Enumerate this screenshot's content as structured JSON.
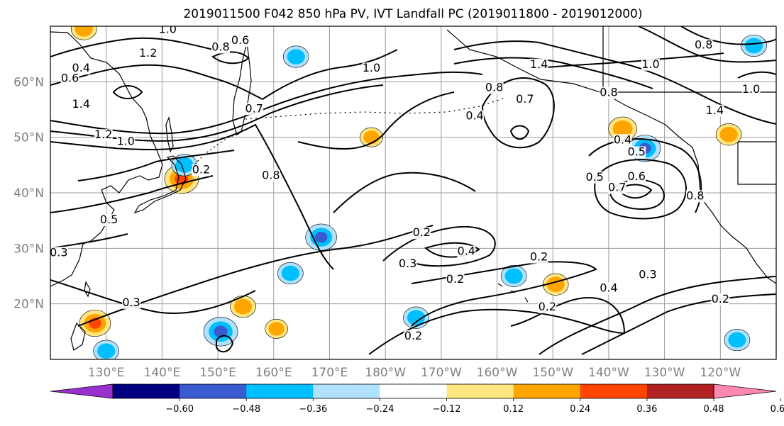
{
  "chart_data": {
    "type": "heatmap",
    "title": "2019011500 F042 850 hPa PV, IVT Landfall PC (2019011800 - 2019012000)",
    "map": {
      "projection": "PlateCarree",
      "lon_range": [
        120,
        250
      ],
      "lat_range": [
        10,
        70
      ],
      "lat_ticks": [
        20,
        30,
        40,
        50,
        60
      ],
      "lat_tick_labels": [
        "20°N",
        "30°N",
        "40°N",
        "50°N",
        "60°N"
      ],
      "lon_ticks": [
        130,
        140,
        150,
        160,
        170,
        180,
        190,
        200,
        210,
        220,
        230,
        240
      ],
      "lon_tick_labels": [
        "130°E",
        "140°E",
        "150°E",
        "160°E",
        "170°E",
        "180°W",
        "170°W",
        "160°W",
        "150°W",
        "140°W",
        "130°W",
        "120°W"
      ],
      "grid": true
    },
    "colorbar": {
      "orientation": "horizontal",
      "extend": "both",
      "levels": [
        -0.6,
        -0.48,
        -0.36,
        -0.24,
        -0.12,
        0.12,
        0.24,
        0.36,
        0.48,
        0.6
      ],
      "tick_labels": [
        "−0.60",
        "−0.48",
        "−0.36",
        "−0.24",
        "−0.12",
        "0.12",
        "0.24",
        "0.36",
        "0.48",
        "0.60"
      ],
      "colors": [
        "#9932CC",
        "#000080",
        "#3A5BCF",
        "#00BFFF",
        "#B0E2FF",
        "#FFFFFF",
        "#FFE680",
        "#FFA500",
        "#FF4500",
        "#B22222",
        "#FF88B0"
      ]
    },
    "pv_contour_labels": [
      {
        "text": "1.0",
        "lon": 141,
        "lat": 68.8
      },
      {
        "text": "1.2",
        "lon": 137.5,
        "lat": 64.5
      },
      {
        "text": "0.4",
        "lon": 125.5,
        "lat": 61.8
      },
      {
        "text": "0.6",
        "lon": 123.5,
        "lat": 60.0
      },
      {
        "text": "1.4",
        "lon": 125.5,
        "lat": 55.3
      },
      {
        "text": "1.2",
        "lon": 129.5,
        "lat": 49.8
      },
      {
        "text": "1.0",
        "lon": 133.5,
        "lat": 48.6
      },
      {
        "text": "0.8",
        "lon": 150.5,
        "lat": 65.6
      },
      {
        "text": "0.6",
        "lon": 154,
        "lat": 66.8
      },
      {
        "text": "0.7",
        "lon": 156.5,
        "lat": 54.5
      },
      {
        "text": "1.0",
        "lon": 177.5,
        "lat": 61.8
      },
      {
        "text": "0.8",
        "lon": 159.5,
        "lat": 42.5
      },
      {
        "text": "0.2",
        "lon": 147,
        "lat": 43.5
      },
      {
        "text": "0.5",
        "lon": 130.5,
        "lat": 34.5
      },
      {
        "text": "0.3",
        "lon": 121.5,
        "lat": 28.6
      },
      {
        "text": "0.3",
        "lon": 134.5,
        "lat": 19.6
      },
      {
        "text": "0.2",
        "lon": 186.5,
        "lat": 32.2
      },
      {
        "text": "0.3",
        "lon": 184,
        "lat": 26.6
      },
      {
        "text": "0.4",
        "lon": 194.5,
        "lat": 28.8
      },
      {
        "text": "0.2",
        "lon": 192.5,
        "lat": 23.8
      },
      {
        "text": "0.2",
        "lon": 185,
        "lat": 13.6
      },
      {
        "text": "0.2",
        "lon": 207.5,
        "lat": 27.8
      },
      {
        "text": "0.2",
        "lon": 209,
        "lat": 18.8
      },
      {
        "text": "0.4",
        "lon": 220,
        "lat": 22.2
      },
      {
        "text": "0.3",
        "lon": 227,
        "lat": 24.6
      },
      {
        "text": "0.2",
        "lon": 240,
        "lat": 20.2
      },
      {
        "text": "0.4",
        "lon": 196,
        "lat": 53.2
      },
      {
        "text": "0.8",
        "lon": 199.5,
        "lat": 58.3
      },
      {
        "text": "0.7",
        "lon": 205,
        "lat": 56.2
      },
      {
        "text": "1.4",
        "lon": 207.5,
        "lat": 62.5
      },
      {
        "text": "1.0",
        "lon": 227.5,
        "lat": 62.5
      },
      {
        "text": "0.8",
        "lon": 220,
        "lat": 57.4
      },
      {
        "text": "0.4",
        "lon": 222.5,
        "lat": 48.9
      },
      {
        "text": "0.5",
        "lon": 225,
        "lat": 46.7
      },
      {
        "text": "0.5",
        "lon": 217.5,
        "lat": 42.2
      },
      {
        "text": "0.6",
        "lon": 225,
        "lat": 42.3
      },
      {
        "text": "0.7",
        "lon": 221.5,
        "lat": 40.3
      },
      {
        "text": "0.8",
        "lon": 235.5,
        "lat": 38.8
      },
      {
        "text": "1.4",
        "lon": 239,
        "lat": 54.2
      },
      {
        "text": "1.0",
        "lon": 245.5,
        "lat": 58.0
      },
      {
        "text": "0.8",
        "lon": 237,
        "lat": 66.0
      }
    ],
    "ivt_pc_anomalies": [
      {
        "lon": 168.5,
        "lat": 32,
        "value": -0.4
      },
      {
        "lon": 150.5,
        "lat": 15,
        "value": -0.45
      },
      {
        "lon": 143.5,
        "lat": 42.5,
        "value": 0.45
      },
      {
        "lon": 128,
        "lat": 16.5,
        "value": 0.4
      },
      {
        "lon": 226.5,
        "lat": 48,
        "value": -0.4
      },
      {
        "lon": 222.5,
        "lat": 51.5,
        "value": 0.35
      },
      {
        "lon": 241.5,
        "lat": 50.5,
        "value": 0.3
      },
      {
        "lon": 144,
        "lat": 45,
        "value": -0.3
      },
      {
        "lon": 164,
        "lat": 64.5,
        "value": -0.3
      },
      {
        "lon": 243,
        "lat": 13.5,
        "value": -0.3
      },
      {
        "lon": 163,
        "lat": 25.5,
        "value": -0.3
      },
      {
        "lon": 130,
        "lat": 11.5,
        "value": -0.3
      },
      {
        "lon": 185.5,
        "lat": 17.5,
        "value": -0.3
      },
      {
        "lon": 203,
        "lat": 25,
        "value": -0.3
      },
      {
        "lon": 210.5,
        "lat": 23.5,
        "value": 0.3
      },
      {
        "lon": 154.5,
        "lat": 19.5,
        "value": 0.3
      },
      {
        "lon": 126,
        "lat": 69.5,
        "value": 0.3
      },
      {
        "lon": 177.5,
        "lat": 50,
        "value": 0.25
      },
      {
        "lon": 246,
        "lat": 66.5,
        "value": -0.3
      },
      {
        "lon": 160.5,
        "lat": 15.5,
        "value": 0.25
      }
    ]
  }
}
